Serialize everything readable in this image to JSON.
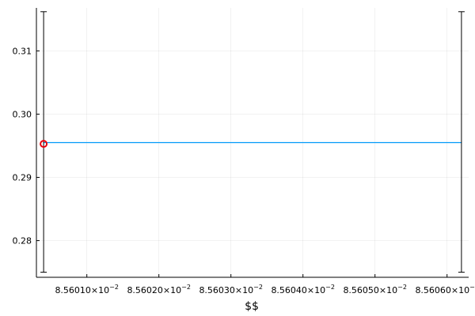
{
  "chart_data": {
    "type": "line",
    "title": "",
    "xlabel": "$$",
    "ylabel": "",
    "grid": true,
    "legend": "none",
    "xlim": [
      0.0856003,
      0.0856063
    ],
    "ylim": [
      0.2742,
      0.3168
    ],
    "xticks": [
      {
        "value": 0.085601,
        "mantissa": "8.56010",
        "exp": "−2"
      },
      {
        "value": 0.085602,
        "mantissa": "8.56020",
        "exp": "−2"
      },
      {
        "value": 0.085603,
        "mantissa": "8.56030",
        "exp": "−2"
      },
      {
        "value": 0.085604,
        "mantissa": "8.56040",
        "exp": "−2"
      },
      {
        "value": 0.085605,
        "mantissa": "8.56050",
        "exp": "−2"
      },
      {
        "value": 0.085606,
        "mantissa": "8.56060",
        "exp": "−2"
      }
    ],
    "yticks": [
      {
        "value": 0.28,
        "label": "0.28"
      },
      {
        "value": 0.29,
        "label": "0.29"
      },
      {
        "value": 0.3,
        "label": "0.30"
      },
      {
        "value": 0.31,
        "label": "0.31"
      }
    ],
    "series": [
      {
        "kind": "line",
        "color": "#009af9",
        "points": [
          {
            "x": 0.0856004,
            "y": 0.2955
          },
          {
            "x": 0.0856062,
            "y": 0.2955
          }
        ]
      }
    ],
    "marker": {
      "x": 0.0856004,
      "y": 0.2953,
      "color": "#e8000b",
      "shape": "open-circle"
    },
    "error_bars": [
      {
        "x": 0.0856004,
        "low": 0.275,
        "high": 0.3162,
        "color": "#000000"
      },
      {
        "x": 0.0856062,
        "low": 0.275,
        "high": 0.3162,
        "color": "#000000"
      }
    ]
  }
}
